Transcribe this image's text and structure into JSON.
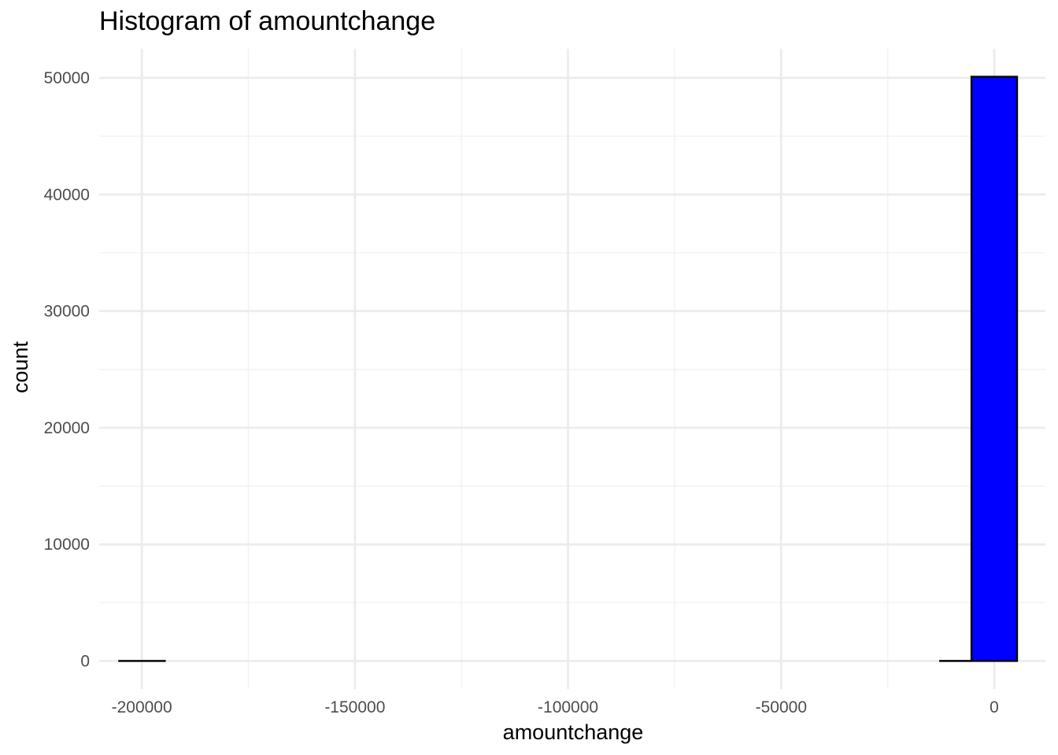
{
  "chart_data": {
    "type": "bar",
    "title": "Histogram of amountchange",
    "xlabel": "amountchange",
    "ylabel": "count",
    "bin_width": 10700,
    "bins": [
      {
        "x0": -205300,
        "x1": -194600,
        "count": 1
      },
      {
        "x0": -194600,
        "x1": -183900,
        "count": 0
      },
      {
        "x0": -183900,
        "x1": -173200,
        "count": 0
      },
      {
        "x0": -173200,
        "x1": -162500,
        "count": 0
      },
      {
        "x0": -162500,
        "x1": -151800,
        "count": 0
      },
      {
        "x0": -151800,
        "x1": -141100,
        "count": 0
      },
      {
        "x0": -141100,
        "x1": -130400,
        "count": 0
      },
      {
        "x0": -130400,
        "x1": -119700,
        "count": 0
      },
      {
        "x0": -119700,
        "x1": -109000,
        "count": 0
      },
      {
        "x0": -109000,
        "x1": -98300,
        "count": 0
      },
      {
        "x0": -98300,
        "x1": -87600,
        "count": 0
      },
      {
        "x0": -87600,
        "x1": -76900,
        "count": 0
      },
      {
        "x0": -76900,
        "x1": -66200,
        "count": 0
      },
      {
        "x0": -66200,
        "x1": -55500,
        "count": 0
      },
      {
        "x0": -55500,
        "x1": -44800,
        "count": 0
      },
      {
        "x0": -44800,
        "x1": -34100,
        "count": 0
      },
      {
        "x0": -34100,
        "x1": -23400,
        "count": 0
      },
      {
        "x0": -23400,
        "x1": -12700,
        "count": 0
      },
      {
        "x0": -12700,
        "x1": -5350,
        "count": 3
      },
      {
        "x0": -5350,
        "x1": 5350,
        "count": 50100
      }
    ],
    "xlim": [
      -210000,
      12000
    ],
    "ylim": [
      -2400,
      52500
    ],
    "x_ticks": [
      -200000,
      -150000,
      -100000,
      -50000,
      0
    ],
    "x_tick_labels": [
      "-200000",
      "-150000",
      "-100000",
      "-50000",
      "0"
    ],
    "y_ticks": [
      0,
      10000,
      20000,
      30000,
      40000,
      50000
    ],
    "y_tick_labels": [
      "0",
      "10000",
      "20000",
      "30000",
      "40000",
      "50000"
    ],
    "grid": true,
    "colors": {
      "bar_fill": "#0000ff",
      "bar_outline": "#000000",
      "grid_major": "#ebebeb",
      "grid_minor": "#f2f2f2"
    }
  }
}
